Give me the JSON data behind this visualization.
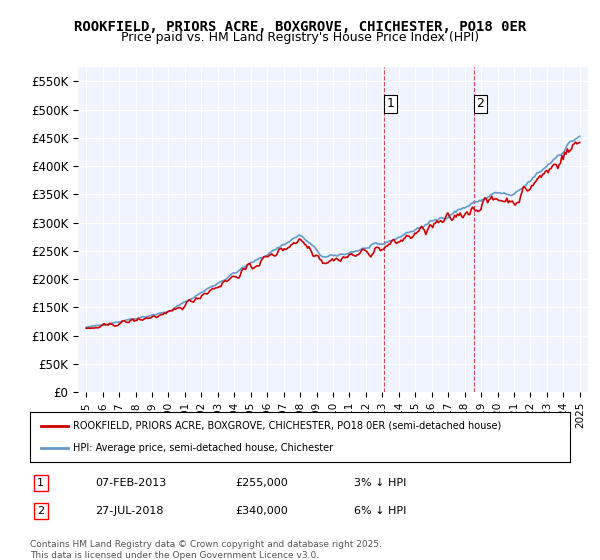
{
  "title": "ROOKFIELD, PRIORS ACRE, BOXGROVE, CHICHESTER, PO18 0ER",
  "subtitle": "Price paid vs. HM Land Registry's House Price Index (HPI)",
  "ylabel_ticks": [
    "£0",
    "£50K",
    "£100K",
    "£150K",
    "£200K",
    "£250K",
    "£300K",
    "£350K",
    "£400K",
    "£450K",
    "£500K",
    "£550K"
  ],
  "ytick_values": [
    0,
    50000,
    100000,
    150000,
    200000,
    250000,
    300000,
    350000,
    400000,
    450000,
    500000,
    550000
  ],
  "ylim": [
    0,
    575000
  ],
  "xlim_start": 1994.5,
  "xlim_end": 2025.5,
  "sale1_x": 2013.1,
  "sale1_label": "1",
  "sale1_date": "07-FEB-2013",
  "sale1_price": "£255,000",
  "sale1_pct": "3% ↓ HPI",
  "sale1_price_val": 255000,
  "sale2_x": 2018.58,
  "sale2_label": "2",
  "sale2_date": "27-JUL-2018",
  "sale2_price": "£340,000",
  "sale2_pct": "6% ↓ HPI",
  "sale2_price_val": 340000,
  "legend_line1": "ROOKFIELD, PRIORS ACRE, BOXGROVE, CHICHESTER, PO18 0ER (semi-detached house)",
  "legend_line2": "HPI: Average price, semi-detached house, Chichester",
  "footer": "Contains HM Land Registry data © Crown copyright and database right 2025.\nThis data is licensed under the Open Government Licence v3.0.",
  "line_color_red": "#cc0000",
  "line_color_blue": "#6699cc",
  "background_color": "#f0f4ff",
  "grid_color": "#ffffff",
  "xtick_years": [
    1995,
    1996,
    1997,
    1998,
    1999,
    2000,
    2001,
    2002,
    2003,
    2004,
    2005,
    2006,
    2007,
    2008,
    2009,
    2010,
    2011,
    2012,
    2013,
    2014,
    2015,
    2016,
    2017,
    2018,
    2019,
    2020,
    2021,
    2022,
    2023,
    2024,
    2025
  ]
}
